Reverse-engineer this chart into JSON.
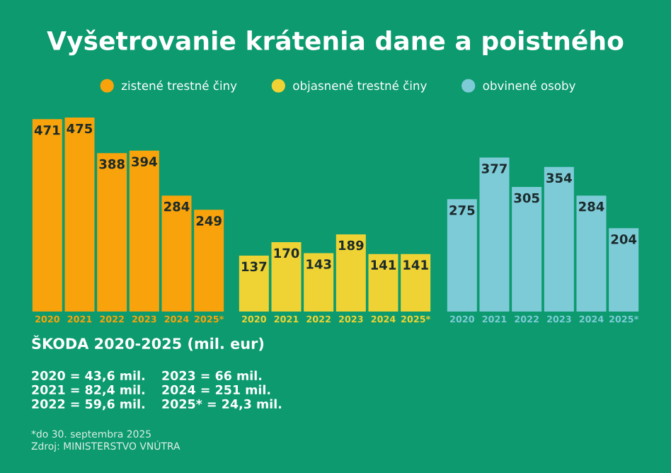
{
  "chart_data": [
    {
      "type": "bar",
      "title": "Vyšetrovanie krátenia dane a poistného",
      "categories": [
        "2020",
        "2021",
        "2022",
        "2023",
        "2024",
        "2025*"
      ],
      "series": [
        {
          "name": "zistené trestné činy",
          "color": "#f8a30b",
          "values": [
            471,
            475,
            388,
            394,
            284,
            249
          ]
        }
      ],
      "data_labels": true,
      "legend": "top",
      "annotations": [
        "ŠKODA 2020-2025 (mil. eur)",
        "2020 = 43,6 mil.",
        "2021 = 82,4 mil.",
        "2022 = 59,6 mil.",
        "2023 = 66 mil.",
        "2024 = 251 mil.",
        "2025* = 24,3 mil.",
        "*do 30. septembra 2025",
        "Zdroj: MINISTERSTVO VNÚTRA"
      ]
    },
    {
      "type": "bar",
      "categories": [
        "2020",
        "2021",
        "2022",
        "2023",
        "2024",
        "2025*"
      ],
      "series": [
        {
          "name": "objasnené trestné činy",
          "color": "#efd334",
          "values": [
            137,
            170,
            143,
            189,
            141,
            141
          ]
        }
      ],
      "data_labels": true,
      "legend": "top"
    },
    {
      "type": "bar",
      "categories": [
        "2020",
        "2021",
        "2022",
        "2023",
        "2024",
        "2025*"
      ],
      "series": [
        {
          "name": "obvinené osoby",
          "color": "#7ecbd8",
          "values": [
            275,
            377,
            305,
            354,
            284,
            204
          ]
        }
      ],
      "data_labels": true,
      "legend": "top"
    }
  ]
}
